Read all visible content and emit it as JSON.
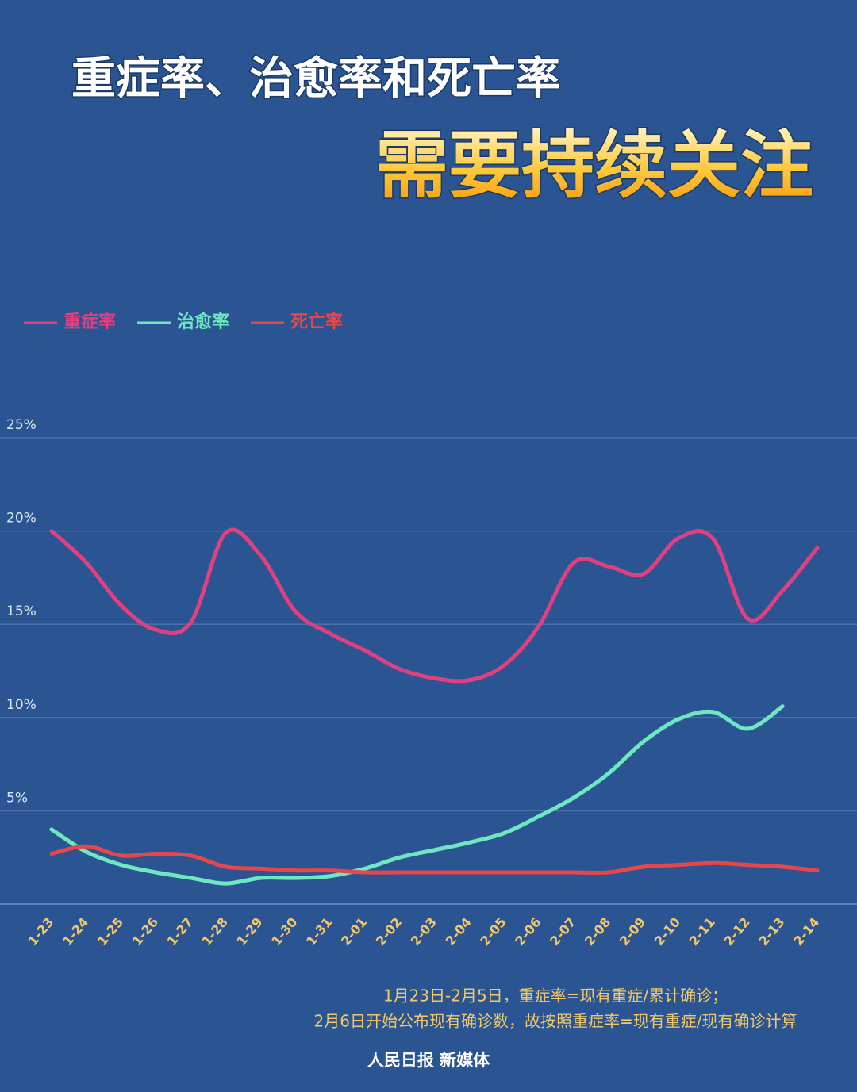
{
  "chart_data": {
    "type": "line",
    "title": "重症率、治愈率和死亡率",
    "subtitle": "需要持续关注",
    "categories": [
      "1-23",
      "1-24",
      "1-25",
      "1-26",
      "1-27",
      "1-28",
      "1-29",
      "1-30",
      "1-31",
      "2-01",
      "2-02",
      "2-03",
      "2-04",
      "2-05",
      "2-06",
      "2-07",
      "2-08",
      "2-09",
      "2-10",
      "2-11",
      "2-12",
      "2-13",
      "2-14"
    ],
    "series": [
      {
        "name": "重症率",
        "color": "#e0407f",
        "values": [
          20,
          18.3,
          16,
          14.7,
          15.1,
          19.9,
          18.7,
          15.7,
          14.5,
          13.6,
          12.6,
          12.1,
          12.0,
          12.8,
          14.9,
          18.3,
          18.1,
          17.7,
          19.6,
          19.6,
          15.3,
          16.8,
          19.1
        ]
      },
      {
        "name": "治愈率",
        "color": "#6ee8c0",
        "values": [
          4.0,
          2.8,
          2.1,
          1.7,
          1.4,
          1.1,
          1.4,
          1.4,
          1.5,
          1.9,
          2.5,
          2.9,
          3.3,
          3.8,
          4.7,
          5.7,
          7.0,
          8.7,
          9.9,
          10.3,
          9.4,
          10.6,
          null
        ]
      },
      {
        "name": "死亡率",
        "color": "#e8474a",
        "values": [
          2.7,
          3.1,
          2.6,
          2.7,
          2.6,
          2.0,
          1.9,
          1.8,
          1.8,
          1.7,
          1.7,
          1.7,
          1.7,
          1.7,
          1.7,
          1.7,
          1.7,
          2.0,
          2.1,
          2.2,
          2.1,
          2.0,
          1.8
        ]
      }
    ],
    "ylim": [
      0,
      25
    ],
    "yticks": [
      {
        "value": 5,
        "label": "5%"
      },
      {
        "value": 10,
        "label": "10%"
      },
      {
        "value": 15,
        "label": "15%"
      },
      {
        "value": 20,
        "label": "20%"
      },
      {
        "value": 25,
        "label": "25%"
      }
    ],
    "grid": true,
    "notes": [
      "1月23日-2月5日，重症率=现有重症/累计确诊；",
      "2月6日开始公布现有确诊数，故按照重症率=现有重症/现有确诊计算"
    ],
    "source": "人民日报 新媒体"
  }
}
